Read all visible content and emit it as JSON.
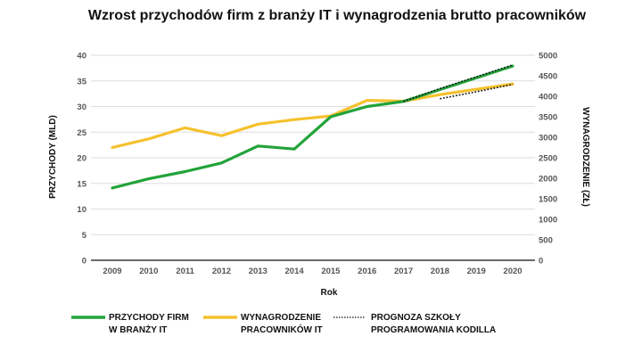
{
  "chart_data": {
    "type": "line",
    "title": "Wzrost przychodów firm z branży  IT  i wynagrodzenia brutto pracowników",
    "xlabel": "Rok",
    "ylabel_left": "PRZYCHODY (MLD)",
    "ylabel_right": "WYNAGRODZENIE (ZŁ)",
    "x": [
      "2009",
      "2010",
      "2011",
      "2012",
      "2013",
      "2014",
      "2015",
      "2016",
      "2017",
      "2018",
      "2019",
      "2020"
    ],
    "yticks_left": [
      "0",
      "5",
      "10",
      "15",
      "20",
      "25",
      "30",
      "35",
      "40"
    ],
    "yticks_right": [
      "0",
      "500",
      "1000",
      "1500",
      "2000",
      "2500",
      "3000",
      "3500",
      "4000",
      "4500",
      "5000"
    ],
    "ylim_left": [
      0,
      40
    ],
    "ylim_right": [
      0,
      5000
    ],
    "grid": true,
    "colors": {
      "revenue": "#22a33a",
      "salary": "#f5c12e",
      "forecast": "#111111",
      "grid": "#dddddd",
      "axis": "#111111"
    },
    "series": [
      {
        "name": "Przychody firm w branży IT",
        "axis": "left",
        "color": "#22a33a",
        "x": [
          "2009",
          "2010",
          "2011",
          "2012",
          "2013",
          "2014",
          "2015",
          "2016",
          "2017",
          "2018",
          "2019",
          "2020"
        ],
        "values": [
          14.1,
          15.9,
          17.3,
          19.0,
          22.3,
          21.7,
          28.0,
          30.0,
          31.0,
          33.3,
          35.6,
          37.9
        ]
      },
      {
        "name": "Wynagrodzenie pracowników IT",
        "axis": "right",
        "color": "#f5c12e",
        "x": [
          "2009",
          "2010",
          "2011",
          "2012",
          "2013",
          "2014",
          "2015",
          "2016",
          "2017",
          "2018",
          "2019",
          "2020"
        ],
        "values": [
          2750,
          2960,
          3230,
          3040,
          3320,
          3430,
          3520,
          3900,
          3880,
          4040,
          4170,
          4300
        ]
      },
      {
        "name": "Prognoza Szkoły Programowania Kodilla (przychody)",
        "axis": "left",
        "color": "#111111",
        "dashed": true,
        "x": [
          "2017",
          "2018",
          "2019",
          "2020"
        ],
        "values": [
          31.0,
          33.5,
          35.8,
          38.1
        ]
      },
      {
        "name": "Prognoza Szkoły Programowania Kodilla (wynagrodzenia)",
        "axis": "right",
        "color": "#111111",
        "dashed": true,
        "x": [
          "2018",
          "2019",
          "2020"
        ],
        "values": [
          3940,
          4110,
          4290
        ]
      }
    ],
    "legend": {
      "position": "bottom",
      "items": [
        {
          "line1": "PRZYCHODY FIRM",
          "line2": "W BRANŻY IT",
          "color": "#22a33a",
          "style": "solid"
        },
        {
          "line1": "WYNAGRODZENIE",
          "line2": "PRACOWNIKÓW IT",
          "color": "#f5c12e",
          "style": "solid"
        },
        {
          "line1": "PROGNOZA SZKOŁY",
          "line2": "PROGRAMOWANIA KODILLA",
          "color": "#111111",
          "style": "dotted"
        }
      ]
    }
  }
}
